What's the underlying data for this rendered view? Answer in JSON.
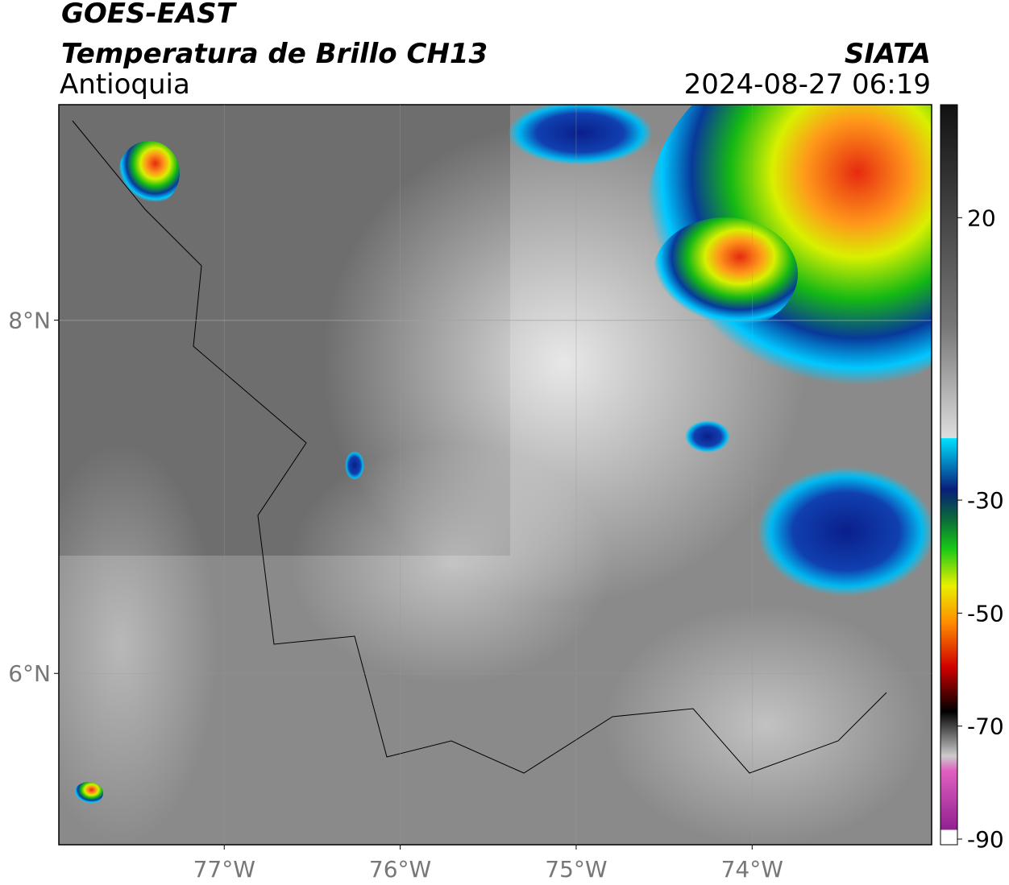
{
  "header": {
    "title": "GOES-EAST",
    "subtitle": "Temperatura de Brillo CH13",
    "region": "Antioquia",
    "source": "SIATA",
    "datetime": "2024-08-27 06:19"
  },
  "map": {
    "xlim": [
      -77.94,
      -72.98
    ],
    "ylim": [
      5.03,
      9.22
    ],
    "xticks": [
      {
        "value": -77,
        "label": "77°W"
      },
      {
        "value": -76,
        "label": "76°W"
      },
      {
        "value": -75,
        "label": "75°W"
      },
      {
        "value": -74,
        "label": "74°W"
      }
    ],
    "yticks": [
      {
        "value": 8,
        "label": "8°N"
      },
      {
        "value": 6,
        "label": "6°N"
      }
    ],
    "grid": true
  },
  "colorbar": {
    "lim": [
      -91,
      40
    ],
    "ticks": [
      20,
      -30,
      -50,
      -70,
      -90
    ]
  }
}
